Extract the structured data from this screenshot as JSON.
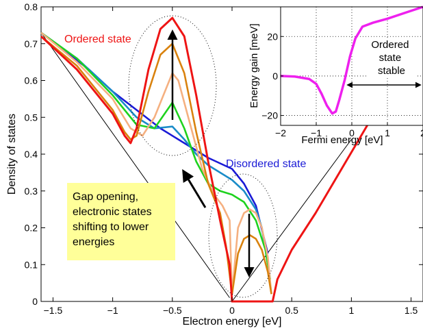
{
  "chart_data": [
    {
      "type": "line",
      "xlabel": "Electron energy [eV]",
      "ylabel": "Density of states",
      "xlim": [
        -1.6,
        1.6
      ],
      "ylim": [
        0,
        0.8
      ],
      "xticks": [
        -1.5,
        -1,
        -0.5,
        0,
        0.5,
        1,
        1.5
      ],
      "xtick_labels": [
        "−1.5",
        "−1",
        "−0.5",
        "0",
        "0.5",
        "1",
        "1.5"
      ],
      "yticks": [
        0,
        0.1,
        0.2,
        0.3,
        0.4,
        0.5,
        0.6,
        0.7,
        0.8
      ],
      "ytick_labels": [
        "0",
        "0.1",
        "0.2",
        "0.3",
        "0.4",
        "0.5",
        "0.6",
        "0.7",
        "0.8"
      ],
      "grid": false,
      "series": [
        {
          "name": "Disordered state",
          "color": "#1a1ad6",
          "x": [
            -1.6,
            -1.4,
            -1.2,
            -1.0,
            -0.8,
            -0.6,
            -0.4,
            -0.2,
            0.0,
            0.1,
            0.2,
            0.3
          ],
          "y": [
            0.73,
            0.68,
            0.63,
            0.57,
            0.52,
            0.47,
            0.43,
            0.39,
            0.36,
            0.32,
            0.26,
            0.13
          ]
        },
        {
          "color": "#1a8cc8",
          "x": [
            -1.6,
            -1.3,
            -1.0,
            -0.8,
            -0.65,
            -0.5,
            -0.4,
            -0.3,
            -0.2,
            -0.1,
            0.0,
            0.1,
            0.2,
            0.25,
            0.3
          ],
          "y": [
            0.73,
            0.66,
            0.57,
            0.5,
            0.47,
            0.475,
            0.44,
            0.4,
            0.37,
            0.35,
            0.33,
            0.3,
            0.25,
            0.2,
            0.1
          ]
        },
        {
          "color": "#1ed21e",
          "x": [
            -1.6,
            -1.3,
            -1.0,
            -0.8,
            -0.65,
            -0.5,
            -0.4,
            -0.3,
            -0.2,
            -0.1,
            0.0,
            0.1,
            0.2,
            0.28,
            0.32
          ],
          "y": [
            0.73,
            0.66,
            0.56,
            0.48,
            0.47,
            0.54,
            0.47,
            0.38,
            0.32,
            0.3,
            0.29,
            0.27,
            0.22,
            0.14,
            0.06
          ]
        },
        {
          "color": "#f5b080",
          "x": [
            -1.6,
            -1.3,
            -1.0,
            -0.85,
            -0.75,
            -0.65,
            -0.55,
            -0.5,
            -0.45,
            -0.35,
            -0.25,
            -0.15,
            -0.08,
            -0.02,
            0.0,
            0.05,
            0.1,
            0.15,
            0.2,
            0.25,
            0.3,
            0.33
          ],
          "y": [
            0.73,
            0.65,
            0.55,
            0.47,
            0.45,
            0.5,
            0.58,
            0.62,
            0.6,
            0.48,
            0.36,
            0.29,
            0.26,
            0.22,
            0.02,
            0.2,
            0.24,
            0.25,
            0.24,
            0.2,
            0.12,
            0.02
          ]
        },
        {
          "color": "#d9820e",
          "x": [
            -1.6,
            -1.3,
            -1.0,
            -0.9,
            -0.85,
            -0.8,
            -0.7,
            -0.6,
            -0.5,
            -0.4,
            -0.3,
            -0.2,
            -0.1,
            -0.05,
            0.0,
            0.05,
            0.1,
            0.15,
            0.2,
            0.25,
            0.3,
            0.33
          ],
          "y": [
            0.72,
            0.64,
            0.52,
            0.46,
            0.44,
            0.45,
            0.57,
            0.67,
            0.7,
            0.62,
            0.46,
            0.32,
            0.24,
            0.15,
            0.02,
            0.13,
            0.17,
            0.18,
            0.17,
            0.14,
            0.08,
            0.02
          ]
        },
        {
          "color": "#ee1414",
          "x": [
            -1.6,
            -1.3,
            -1.0,
            -0.9,
            -0.85,
            -0.8,
            -0.7,
            -0.6,
            -0.5,
            -0.4,
            -0.3,
            -0.2,
            -0.1,
            -0.02,
            0.0,
            0.0,
            0.34,
            0.34,
            0.38,
            0.5,
            0.7,
            0.9,
            1.1,
            1.3,
            1.5,
            1.6
          ],
          "y": [
            0.72,
            0.63,
            0.51,
            0.45,
            0.43,
            0.47,
            0.63,
            0.74,
            0.77,
            0.72,
            0.56,
            0.38,
            0.22,
            0.1,
            0.0,
            0.0,
            0.0,
            0.0,
            0.06,
            0.14,
            0.24,
            0.35,
            0.46,
            0.57,
            0.68,
            0.74
          ]
        }
      ],
      "reference_lines": [
        {
          "x": [
            -1.6,
            -0.02
          ],
          "y": [
            0.73,
            0.01
          ],
          "color": "#000000"
        },
        {
          "x": [
            0.0,
            1.0
          ],
          "y": [
            0.0,
            0.44
          ],
          "color": "#000000"
        }
      ],
      "annotations": {
        "ordered_label": "Ordered state",
        "disordered_label": "Disordered state",
        "gap_text": [
          "Gap opening,",
          "electronic states",
          "shifting to lower",
          "energies"
        ]
      }
    },
    {
      "type": "line",
      "xlabel": "Fermi energy  [eV]",
      "ylabel": "Energy gain [meV]",
      "xlim": [
        -2,
        2
      ],
      "ylim": [
        -25,
        35
      ],
      "xticks": [
        -2,
        -1,
        0,
        1,
        2
      ],
      "xtick_labels": [
        "−2",
        "−1",
        "0",
        "1",
        "2"
      ],
      "yticks": [
        -20,
        0,
        20
      ],
      "ytick_labels": [
        "−20",
        "0",
        "20"
      ],
      "grid": true,
      "series": [
        {
          "color": "#ee20ee",
          "x": [
            -2.0,
            -1.6,
            -1.2,
            -1.0,
            -0.85,
            -0.7,
            -0.55,
            -0.45,
            -0.35,
            -0.2,
            -0.05,
            0.1,
            0.3,
            0.6,
            1.0,
            1.5,
            2.0
          ],
          "y": [
            0,
            -0.3,
            -1.5,
            -4,
            -9,
            -15,
            -19,
            -18,
            -12,
            -2,
            10,
            19,
            25,
            27,
            29,
            32,
            35
          ]
        }
      ],
      "annotations": {
        "stable_text": [
          "Ordered",
          "state",
          "stable"
        ]
      }
    }
  ]
}
